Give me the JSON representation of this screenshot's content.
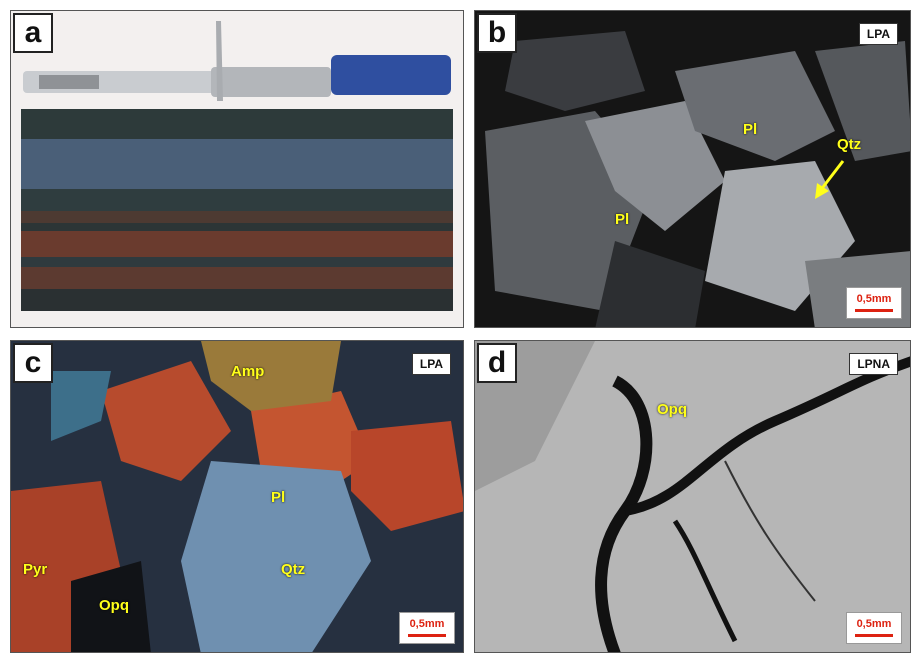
{
  "panels": {
    "a": {
      "letter": "a"
    },
    "b": {
      "letter": "b",
      "mode": "LPA",
      "scale": "0,5mm",
      "labels": [
        "Pl",
        "Pl",
        "Qtz"
      ]
    },
    "c": {
      "letter": "c",
      "mode": "LPA",
      "scale": "0,5mm",
      "labels": [
        "Amp",
        "Pl",
        "Qtz",
        "Pyr",
        "Opq"
      ]
    },
    "d": {
      "letter": "d",
      "mode": "LPNA",
      "scale": "0,5mm",
      "labels": [
        "Opq"
      ]
    }
  },
  "colors": {
    "label": "#ffff1a",
    "scale": "#dd2211"
  }
}
